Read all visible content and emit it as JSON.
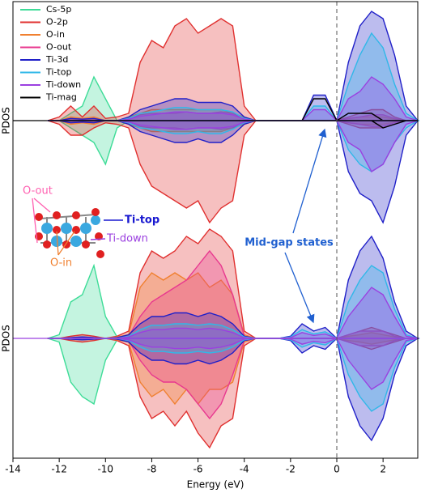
{
  "chart_data": {
    "type": "area",
    "xlabel": "Energy (eV)",
    "xlim": [
      -14,
      3.5
    ],
    "xticks": [
      -14,
      -12,
      -10,
      -8,
      -6,
      -4,
      -2,
      0,
      2
    ],
    "ylim": [
      -15,
      15
    ],
    "legend": "upper-left",
    "annotations": [
      "O-out",
      "Ti-top",
      "Ti-down",
      "O-in",
      "Mid-gap states"
    ],
    "x": [
      -12.5,
      -12,
      -11.5,
      -11,
      -10.5,
      -10,
      -9.5,
      -9,
      -8.5,
      -8,
      -7.5,
      -7,
      -6.5,
      -6,
      -5.5,
      -5,
      -4.5,
      -4,
      -3.5,
      -3,
      -2.5,
      -2,
      -1.5,
      -1,
      -0.5,
      0,
      0.5,
      1,
      1.5,
      2,
      2.5,
      3,
      3.5
    ],
    "series": [
      {
        "name": "Cs-5p",
        "color": "#3ddc97",
        "fill": true
      },
      {
        "name": "O-2p",
        "color": "#e0302f",
        "fill": true
      },
      {
        "name": "O-in",
        "color": "#f08030",
        "fill": true
      },
      {
        "name": "O-out",
        "color": "#e8388f",
        "fill": true
      },
      {
        "name": "Ti-3d",
        "color": "#2020c8",
        "fill": true
      },
      {
        "name": "Ti-top",
        "color": "#30b8e8",
        "fill": true
      },
      {
        "name": "Ti-down",
        "color": "#9b40e0",
        "fill": true
      },
      {
        "name": "Ti-mag",
        "color": "#000000",
        "fill": false
      }
    ],
    "panels": [
      {
        "ylabel": "PDOS",
        "up": [
          [
            0,
            0,
            1,
            2,
            6,
            3,
            0,
            0,
            0,
            0,
            0,
            0,
            0,
            0,
            0,
            0,
            0,
            0,
            0,
            0,
            0,
            0,
            0,
            0,
            0,
            0,
            0,
            0,
            0,
            0,
            0,
            0,
            0
          ],
          [
            0,
            0.5,
            2,
            0.5,
            2,
            0.3,
            0.5,
            1,
            8,
            11,
            10,
            13,
            14,
            12,
            13,
            14,
            13,
            2,
            0,
            0,
            0,
            0,
            0,
            0,
            0,
            0,
            0.5,
            1,
            1.5,
            1.5,
            0.5,
            0,
            0
          ],
          [
            0,
            0,
            0.5,
            0.3,
            0.5,
            0,
            0,
            0.5,
            1,
            1.5,
            1.5,
            1.5,
            1.5,
            1.5,
            1.5,
            1.5,
            1,
            0.5,
            0,
            0,
            0,
            0,
            0,
            0,
            0,
            0,
            0.3,
            0.5,
            0.5,
            0.5,
            0.2,
            0,
            0
          ],
          [
            0,
            0,
            0.3,
            0.2,
            0.3,
            0,
            0,
            0.3,
            0.8,
            1,
            1,
            1,
            1.2,
            1,
            1,
            1.2,
            1,
            0.3,
            0,
            0,
            0,
            0,
            0,
            0,
            0,
            0,
            0.3,
            0.5,
            0.8,
            0.8,
            0.3,
            0,
            0
          ],
          [
            0,
            0,
            0.3,
            0.2,
            0.3,
            0,
            0,
            0.5,
            1.5,
            2,
            2.5,
            3,
            3,
            2.5,
            2.5,
            2.5,
            2,
            0.5,
            0,
            0,
            0,
            0,
            0,
            3.5,
            3.5,
            0,
            8,
            13,
            15,
            14,
            9,
            2,
            0
          ],
          [
            0,
            0,
            0,
            0,
            0,
            0,
            0,
            0.3,
            1,
            1.2,
            1.5,
            1.8,
            1.8,
            1.5,
            1.5,
            1.5,
            1.2,
            0.3,
            0,
            0,
            0,
            0,
            0,
            2,
            2,
            0,
            5,
            9,
            12,
            10,
            5,
            1,
            0
          ],
          [
            0,
            0,
            0,
            0,
            0,
            0,
            0,
            0.2,
            0.6,
            0.8,
            1,
            1.2,
            1.2,
            1,
            1,
            1,
            0.8,
            0.2,
            0,
            0,
            0,
            0,
            0,
            1.5,
            1.5,
            0,
            3,
            4,
            6,
            5,
            3,
            0.5,
            0
          ],
          [
            0,
            0,
            0,
            0,
            0,
            0,
            0,
            0,
            0,
            0,
            0,
            0,
            0,
            0,
            0,
            0,
            0,
            0,
            0,
            0,
            0,
            0,
            0,
            3,
            3,
            0,
            1,
            1,
            1,
            0,
            0,
            0,
            0
          ]
        ],
        "down": [
          [
            0,
            0,
            -1,
            -2,
            -3,
            -6,
            -1,
            0,
            0,
            0,
            0,
            0,
            0,
            0,
            0,
            0,
            0,
            0,
            0,
            0,
            0,
            0,
            0,
            0,
            0,
            0,
            0,
            0,
            0,
            0,
            0,
            0,
            0
          ],
          [
            0,
            -0.5,
            -2,
            -2,
            -1,
            -0.3,
            -0.5,
            -1,
            -6,
            -9,
            -10,
            -11,
            -12,
            -11,
            -14,
            -12,
            -11,
            -2,
            0,
            0,
            0,
            0,
            0,
            0,
            0,
            0,
            -0.5,
            -1,
            -1,
            -1,
            -0.5,
            0,
            0
          ],
          [
            0,
            0,
            -0.5,
            -0.3,
            -0.5,
            0,
            0,
            -0.5,
            -1,
            -1.5,
            -1.5,
            -1.5,
            -1.5,
            -1.5,
            -1.5,
            -1.5,
            -1,
            -0.5,
            0,
            0,
            0,
            0,
            0,
            0,
            0,
            0,
            -0.3,
            -0.5,
            -0.5,
            -0.5,
            -0.2,
            0,
            0
          ],
          [
            0,
            0,
            -0.3,
            -0.2,
            -0.3,
            0,
            0,
            -0.3,
            -0.8,
            -1,
            -1,
            -1,
            -1.2,
            -1,
            -1,
            -1.2,
            -1,
            -0.3,
            0,
            0,
            0,
            0,
            0,
            0,
            0,
            0,
            -0.3,
            -0.5,
            -0.8,
            -0.8,
            -0.3,
            0,
            0
          ],
          [
            0,
            0,
            -0.3,
            -0.2,
            -0.3,
            0,
            0,
            -0.5,
            -1.5,
            -2,
            -2.5,
            -3,
            -3,
            -2.5,
            -3,
            -3,
            -2,
            -0.5,
            0,
            0,
            0,
            0,
            0,
            0,
            0,
            0,
            -7,
            -10,
            -11,
            -14,
            -9,
            -2,
            0
          ],
          [
            0,
            0,
            0,
            0,
            0,
            0,
            0,
            -0.3,
            -1,
            -1.2,
            -1.5,
            -1.8,
            -1.8,
            -1.5,
            -1.8,
            -1.8,
            -1.2,
            -0.3,
            0,
            0,
            0,
            0,
            0,
            0,
            0,
            0,
            -4,
            -6,
            -7,
            -6,
            -3,
            -1,
            0
          ],
          [
            0,
            0,
            0,
            0,
            0,
            0,
            0,
            -0.2,
            -0.6,
            -0.8,
            -1,
            -1.2,
            -1.2,
            -1,
            -1,
            -1,
            -0.8,
            -0.2,
            0,
            0,
            0,
            0,
            0,
            0,
            0,
            0,
            -3,
            -4,
            -7,
            -6,
            -3,
            -0.5,
            0
          ],
          [
            0,
            0,
            0,
            0,
            0,
            0,
            0,
            0,
            0,
            0,
            0,
            0,
            0,
            0,
            0,
            0,
            0,
            0,
            0,
            0,
            0,
            0,
            0,
            0,
            0,
            0,
            0,
            0,
            0,
            -1,
            -0.5,
            0,
            0
          ]
        ]
      },
      {
        "ylabel": "PDOS",
        "up": [
          [
            0,
            0.5,
            5,
            6,
            10,
            3,
            0.2,
            0,
            0,
            0,
            0,
            0,
            0,
            0,
            0,
            0,
            0,
            0,
            0,
            0,
            0,
            0,
            0,
            0,
            0,
            0,
            0,
            0,
            0,
            0,
            0,
            0,
            0
          ],
          [
            0,
            0,
            0.3,
            0.5,
            0.3,
            0,
            0.3,
            1,
            9,
            12,
            11,
            12,
            14,
            13,
            15,
            14,
            12,
            1,
            0,
            0,
            0,
            0,
            0,
            0,
            0,
            0,
            0.5,
            1,
            1.5,
            1,
            0.5,
            0,
            0
          ],
          [
            0,
            0,
            0.1,
            0.2,
            0.1,
            0,
            0.2,
            0.5,
            7,
            9,
            8,
            9,
            8,
            9,
            7,
            8,
            6,
            0.5,
            0,
            0,
            0,
            0,
            0,
            0,
            0,
            0,
            0.3,
            0.5,
            0.8,
            0.5,
            0.2,
            0,
            0
          ],
          [
            0,
            0,
            0.1,
            0.2,
            0.1,
            0,
            0.1,
            0.3,
            3,
            5,
            6,
            7,
            8,
            10,
            12,
            10,
            6,
            0.3,
            0,
            0,
            0,
            0,
            0,
            0,
            0,
            0,
            0.5,
            1,
            1,
            1,
            0.3,
            0,
            0
          ],
          [
            0,
            0,
            0.1,
            0.2,
            0.1,
            0,
            0.1,
            0.5,
            2,
            3,
            3,
            3.5,
            3.5,
            3,
            3.5,
            3,
            2,
            0.3,
            0,
            0,
            0,
            0.3,
            2,
            1,
            1.5,
            0,
            8,
            12,
            14,
            11,
            5,
            1,
            0
          ],
          [
            0,
            0,
            0,
            0,
            0,
            0,
            0,
            0.3,
            1.2,
            1.8,
            1.8,
            2,
            2,
            1.8,
            2,
            1.8,
            1.2,
            0.2,
            0,
            0,
            0,
            0.2,
            1.2,
            0.6,
            0.9,
            0,
            5,
            8,
            10,
            9,
            4,
            0.5,
            0
          ],
          [
            0,
            0,
            0,
            0,
            0,
            0,
            0,
            0.2,
            0.8,
            1.2,
            1.2,
            1.4,
            1.4,
            1.2,
            1.4,
            1.2,
            0.8,
            0.1,
            0,
            0,
            0,
            0.1,
            0.8,
            0.4,
            0.6,
            0,
            3,
            5,
            7,
            6,
            3,
            0.3,
            0
          ]
        ],
        "down": [
          [
            0,
            -0.5,
            -6,
            -8,
            -9,
            -3,
            -0.2,
            0,
            0,
            0,
            0,
            0,
            0,
            0,
            0,
            0,
            0,
            0,
            0,
            0,
            0,
            0,
            0,
            0,
            0,
            0,
            0,
            0,
            0,
            0,
            0,
            0,
            0
          ],
          [
            0,
            0,
            -0.3,
            -0.5,
            -0.3,
            0,
            -0.3,
            -1,
            -8,
            -11,
            -10,
            -12,
            -10,
            -13,
            -15,
            -12,
            -11,
            -1,
            0,
            0,
            0,
            0,
            0,
            0,
            0,
            0,
            -0.5,
            -1,
            -1.5,
            -1,
            -0.5,
            0,
            0
          ],
          [
            0,
            0,
            -0.1,
            -0.2,
            -0.1,
            0,
            -0.2,
            -0.5,
            -6,
            -8,
            -7,
            -9,
            -7,
            -9,
            -7,
            -7,
            -6,
            -0.5,
            0,
            0,
            0,
            0,
            0,
            0,
            0,
            0,
            -0.3,
            -0.5,
            -0.8,
            -0.5,
            -0.2,
            0,
            0
          ],
          [
            0,
            0,
            -0.1,
            -0.2,
            -0.1,
            0,
            -0.1,
            -0.3,
            -3,
            -5,
            -6,
            -6,
            -7,
            -9,
            -11,
            -9,
            -5,
            -0.3,
            0,
            0,
            0,
            0,
            0,
            0,
            0,
            0,
            -0.5,
            -1,
            -1,
            -1,
            -0.3,
            0,
            0
          ],
          [
            0,
            0,
            -0.1,
            -0.2,
            -0.1,
            0,
            -0.1,
            -0.5,
            -2,
            -3,
            -3,
            -3.5,
            -3.5,
            -3,
            -3.5,
            -3,
            -2,
            -0.3,
            0,
            0,
            0,
            -0.3,
            -2,
            -1,
            -1.5,
            0,
            -8,
            -12,
            -14,
            -11,
            -5,
            -1,
            0
          ],
          [
            0,
            0,
            0,
            0,
            0,
            0,
            0,
            -0.3,
            -1.2,
            -1.8,
            -1.8,
            -2,
            -2,
            -1.8,
            -2,
            -1.8,
            -1.2,
            -0.2,
            0,
            0,
            0,
            -0.2,
            -1.2,
            -0.6,
            -0.9,
            0,
            -5,
            -8,
            -10,
            -9,
            -4,
            -0.5,
            0
          ],
          [
            0,
            0,
            0,
            0,
            0,
            0,
            0,
            -0.2,
            -0.8,
            -1.2,
            -1.2,
            -1.4,
            -1.4,
            -1.2,
            -1.4,
            -1.2,
            -0.8,
            -0.1,
            0,
            0,
            0,
            -0.1,
            -0.8,
            -0.4,
            -0.6,
            0,
            -3,
            -5,
            -7,
            -6,
            -3,
            -0.3,
            0
          ]
        ]
      }
    ]
  }
}
